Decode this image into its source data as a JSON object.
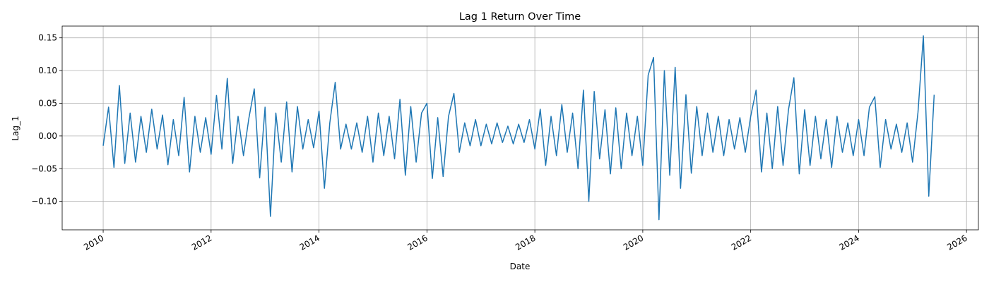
{
  "chart_data": {
    "type": "line",
    "title": "Lag 1 Return Over Time",
    "x_label": "Date",
    "y_label": "Lag_1",
    "color": "#1f77b4",
    "grid": true,
    "xlim": [
      2009.24,
      2026.22
    ],
    "ylim": [
      -0.1435,
      0.168
    ],
    "xticks": [
      2010,
      2012,
      2014,
      2016,
      2018,
      2020,
      2022,
      2024,
      2026
    ],
    "yticks": [
      {
        "value": -0.1,
        "label": "−0.10"
      },
      {
        "value": -0.05,
        "label": "−0.05"
      },
      {
        "value": 0,
        "label": "0.00"
      },
      {
        "value": 0.05,
        "label": "0.05"
      },
      {
        "value": 0.1,
        "label": "0.10"
      },
      {
        "value": 0.15,
        "label": "0.15"
      }
    ],
    "x": [
      2010.0,
      2010.1,
      2010.2,
      2010.3,
      2010.4,
      2010.5,
      2010.6,
      2010.7,
      2010.8,
      2010.9,
      2011.0,
      2011.1,
      2011.2,
      2011.3,
      2011.4,
      2011.5,
      2011.6,
      2011.7,
      2011.8,
      2011.9,
      2012.0,
      2012.1,
      2012.2,
      2012.3,
      2012.4,
      2012.5,
      2012.6,
      2012.7,
      2012.8,
      2012.9,
      2013.0,
      2013.1,
      2013.2,
      2013.3,
      2013.4,
      2013.5,
      2013.6,
      2013.7,
      2013.8,
      2013.9,
      2014.0,
      2014.1,
      2014.2,
      2014.3,
      2014.4,
      2014.5,
      2014.6,
      2014.7,
      2014.8,
      2014.9,
      2015.0,
      2015.1,
      2015.2,
      2015.3,
      2015.4,
      2015.5,
      2015.6,
      2015.7,
      2015.8,
      2015.9,
      2016.0,
      2016.1,
      2016.2,
      2016.3,
      2016.4,
      2016.5,
      2016.6,
      2016.7,
      2016.8,
      2016.9,
      2017.0,
      2017.1,
      2017.2,
      2017.3,
      2017.4,
      2017.5,
      2017.6,
      2017.7,
      2017.8,
      2017.9,
      2018.0,
      2018.1,
      2018.2,
      2018.3,
      2018.4,
      2018.5,
      2018.6,
      2018.7,
      2018.8,
      2018.9,
      2019.0,
      2019.1,
      2019.2,
      2019.3,
      2019.4,
      2019.5,
      2019.6,
      2019.7,
      2019.8,
      2019.9,
      2020.0,
      2020.1,
      2020.2,
      2020.3,
      2020.4,
      2020.5,
      2020.6,
      2020.7,
      2020.8,
      2020.9,
      2021.0,
      2021.1,
      2021.2,
      2021.3,
      2021.4,
      2021.5,
      2021.6,
      2021.7,
      2021.8,
      2021.9,
      2022.0,
      2022.1,
      2022.2,
      2022.3,
      2022.4,
      2022.5,
      2022.6,
      2022.7,
      2022.8,
      2022.9,
      2023.0,
      2023.1,
      2023.2,
      2023.3,
      2023.4,
      2023.5,
      2023.6,
      2023.7,
      2023.8,
      2023.9,
      2024.0,
      2024.1,
      2024.2,
      2024.3,
      2024.4,
      2024.5,
      2024.6,
      2024.7,
      2024.8,
      2024.9,
      2025.0,
      2025.1,
      2025.2,
      2025.3,
      2025.4
    ],
    "values": [
      -0.015,
      0.044,
      -0.048,
      0.077,
      -0.042,
      0.035,
      -0.04,
      0.03,
      -0.025,
      0.041,
      -0.02,
      0.032,
      -0.044,
      0.025,
      -0.03,
      0.059,
      -0.055,
      0.03,
      -0.025,
      0.028,
      -0.028,
      0.062,
      -0.02,
      0.088,
      -0.042,
      0.03,
      -0.03,
      0.027,
      0.072,
      -0.064,
      0.044,
      -0.123,
      0.035,
      -0.04,
      0.052,
      -0.055,
      0.045,
      -0.02,
      0.025,
      -0.018,
      0.038,
      -0.08,
      0.02,
      0.082,
      -0.02,
      0.018,
      -0.02,
      0.02,
      -0.025,
      0.03,
      -0.04,
      0.035,
      -0.03,
      0.03,
      -0.035,
      0.056,
      -0.06,
      0.045,
      -0.04,
      0.035,
      0.05,
      -0.065,
      0.028,
      -0.062,
      0.03,
      0.065,
      -0.025,
      0.02,
      -0.015,
      0.025,
      -0.015,
      0.018,
      -0.012,
      0.02,
      -0.01,
      0.015,
      -0.012,
      0.018,
      -0.01,
      0.025,
      -0.02,
      0.041,
      -0.045,
      0.03,
      -0.03,
      0.048,
      -0.025,
      0.035,
      -0.05,
      0.07,
      -0.1,
      0.068,
      -0.035,
      0.04,
      -0.058,
      0.043,
      -0.05,
      0.035,
      -0.03,
      0.03,
      -0.045,
      0.093,
      0.12,
      -0.128,
      0.1,
      -0.06,
      0.105,
      -0.08,
      0.063,
      -0.057,
      0.045,
      -0.03,
      0.035,
      -0.025,
      0.03,
      -0.03,
      0.025,
      -0.02,
      0.028,
      -0.025,
      0.03,
      0.07,
      -0.055,
      0.035,
      -0.05,
      0.045,
      -0.045,
      0.04,
      0.089,
      -0.058,
      0.04,
      -0.045,
      0.03,
      -0.035,
      0.025,
      -0.048,
      0.03,
      -0.025,
      0.02,
      -0.03,
      0.025,
      -0.03,
      0.044,
      0.06,
      -0.048,
      0.025,
      -0.02,
      0.018,
      -0.025,
      0.02,
      -0.04,
      0.036,
      0.153,
      -0.092,
      0.063
    ]
  }
}
